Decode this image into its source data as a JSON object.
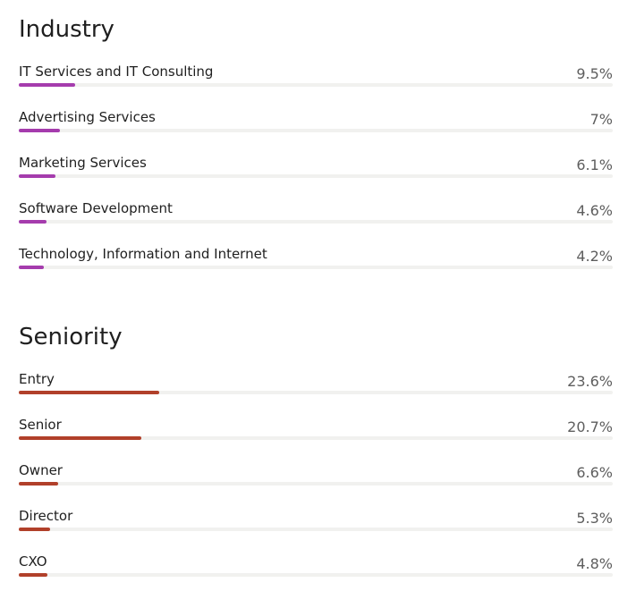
{
  "chart_data": [
    {
      "type": "bar",
      "orientation": "horizontal",
      "title": "Industry",
      "value_suffix": "%",
      "color": "#a53cad",
      "categories": [
        "IT Services and IT Consulting",
        "Advertising Services",
        "Marketing Services",
        "Software Development",
        "Technology, Information and Internet"
      ],
      "values": [
        9.5,
        7,
        6.1,
        4.6,
        4.2
      ],
      "labels": [
        "9.5%",
        "7%",
        "6.1%",
        "4.6%",
        "4.2%"
      ],
      "xlim": [
        0,
        100
      ]
    },
    {
      "type": "bar",
      "orientation": "horizontal",
      "title": "Seniority",
      "value_suffix": "%",
      "color": "#b1402a",
      "categories": [
        "Entry",
        "Senior",
        "Owner",
        "Director",
        "CXO"
      ],
      "values": [
        23.6,
        20.7,
        6.6,
        5.3,
        4.8
      ],
      "labels": [
        "23.6%",
        "20.7%",
        "6.6%",
        "5.3%",
        "4.8%"
      ],
      "xlim": [
        0,
        100
      ]
    }
  ]
}
